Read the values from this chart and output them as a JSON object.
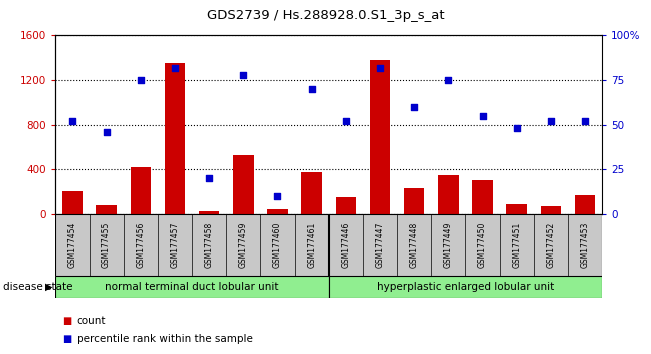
{
  "title": "GDS2739 / Hs.288928.0.S1_3p_s_at",
  "samples": [
    "GSM177454",
    "GSM177455",
    "GSM177456",
    "GSM177457",
    "GSM177458",
    "GSM177459",
    "GSM177460",
    "GSM177461",
    "GSM177446",
    "GSM177447",
    "GSM177448",
    "GSM177449",
    "GSM177450",
    "GSM177451",
    "GSM177452",
    "GSM177453"
  ],
  "counts": [
    210,
    80,
    420,
    1350,
    30,
    530,
    50,
    380,
    150,
    1380,
    230,
    350,
    310,
    95,
    75,
    170
  ],
  "percentiles": [
    52,
    46,
    75,
    82,
    20,
    78,
    10,
    70,
    52,
    82,
    60,
    75,
    55,
    48,
    52,
    52
  ],
  "group1_label": "normal terminal duct lobular unit",
  "group2_label": "hyperplastic enlarged lobular unit",
  "group1_count": 8,
  "group2_count": 8,
  "disease_state_label": "disease state",
  "ylim_left": [
    0,
    1600
  ],
  "ylim_right": [
    0,
    100
  ],
  "yticks_left": [
    0,
    400,
    800,
    1200,
    1600
  ],
  "yticks_right": [
    0,
    25,
    50,
    75,
    100
  ],
  "ytick_labels_right": [
    "0",
    "25",
    "50",
    "75",
    "100%"
  ],
  "bar_color": "#cc0000",
  "dot_color": "#0000cc",
  "bar_width": 0.6,
  "background_color": "#ffffff",
  "tick_label_color_left": "#cc0000",
  "tick_label_color_right": "#0000cc",
  "grid_color": "#000000",
  "group1_bg": "#90EE90",
  "group2_bg": "#90EE90",
  "xticklabel_bg": "#c8c8c8",
  "legend_count": "count",
  "legend_percentile": "percentile rank within the sample"
}
